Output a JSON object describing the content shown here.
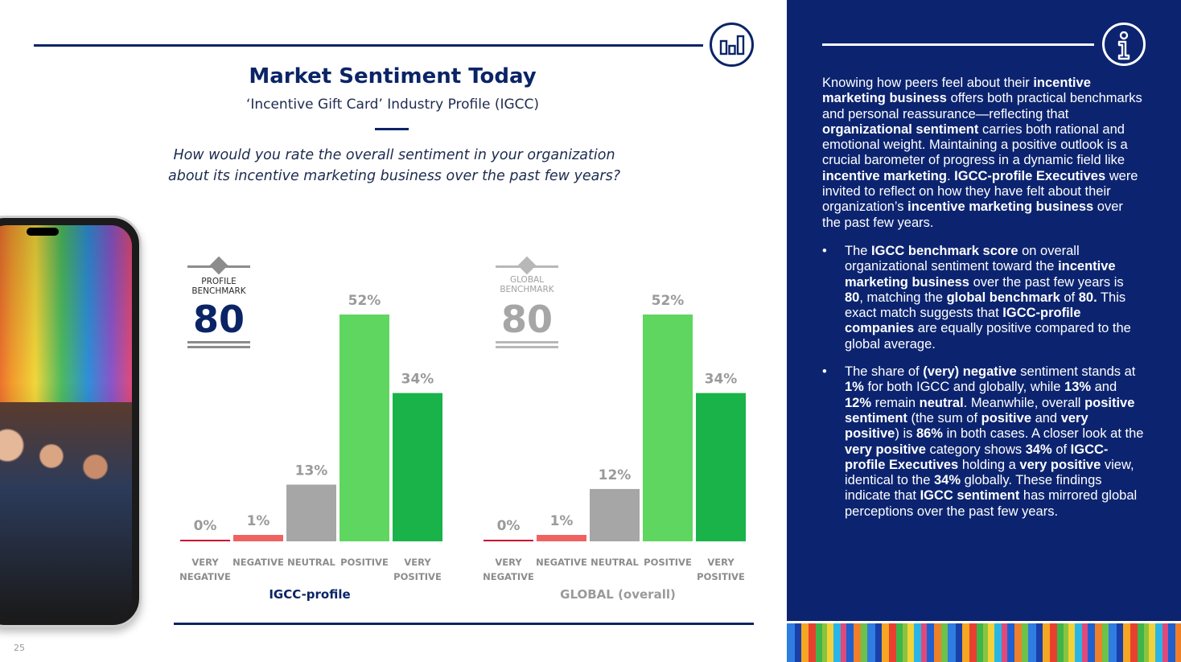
{
  "header": {
    "title": "Market Sentiment Today",
    "subtitle": "‘Incentive Gift Card’ Industry Profile (IGCC)",
    "question_line1": "How would you rate the overall sentiment in your organization",
    "question_line2": "about its incentive marketing business over the past few years?",
    "chart_icon": "bar-chart-icon"
  },
  "benchmarks": {
    "profile": {
      "label_line1": "PROFILE",
      "label_line2": "BENCHMARK",
      "value": "80"
    },
    "global": {
      "label_line1": "GLOBAL",
      "label_line2": "BENCHMARK",
      "value": "80"
    }
  },
  "groups": {
    "igcc": "IGCC-profile",
    "global": "GLOBAL (overall)"
  },
  "colors": {
    "navy": "#0b2466",
    "very_negative": "#c8102e",
    "negative": "#f06262",
    "neutral": "#a6a6a6",
    "positive": "#5fd65f",
    "very_positive": "#19b34a"
  },
  "chart_data": [
    {
      "type": "bar",
      "categories": [
        "VERY NEGATIVE",
        "NEGATIVE",
        "NEUTRAL",
        "POSITIVE",
        "VERY POSITIVE"
      ],
      "values": [
        0,
        1,
        13,
        52,
        34
      ],
      "data_labels": [
        "0%",
        "1%",
        "13%",
        "52%",
        "34%"
      ],
      "title": "IGCC-profile",
      "ylim": [
        0,
        60
      ]
    },
    {
      "type": "bar",
      "categories": [
        "VERY NEGATIVE",
        "NEGATIVE",
        "NEUTRAL",
        "POSITIVE",
        "VERY POSITIVE"
      ],
      "values": [
        0,
        1,
        12,
        52,
        34
      ],
      "data_labels": [
        "0%",
        "1%",
        "12%",
        "52%",
        "34%"
      ],
      "title": "GLOBAL (overall)",
      "ylim": [
        0,
        60
      ]
    }
  ],
  "panel": {
    "info_icon": "info-icon",
    "intro": [
      {
        "t": "Knowing how peers feel about their "
      },
      {
        "t": "incentive marketing business",
        "b": true
      },
      {
        "t": " offers both practical benchmarks and personal reassurance—reflecting that "
      },
      {
        "t": "organizational sentiment",
        "b": true
      },
      {
        "t": " carries both rational and emotional weight. Maintaining a positive outlook is a crucial barometer of progress in a dynamic field like "
      },
      {
        "t": "incentive marketing",
        "b": true
      },
      {
        "t": ". "
      },
      {
        "t": "IGCC-profile Executives",
        "b": true
      },
      {
        "t": " were invited to reflect on how they have felt about their organization’s "
      },
      {
        "t": "incentive marketing business",
        "b": true
      },
      {
        "t": " over the past few years."
      }
    ],
    "bullets": [
      [
        {
          "t": "The "
        },
        {
          "t": "IGCC benchmark score",
          "b": true
        },
        {
          "t": " on overall organizational sentiment toward the "
        },
        {
          "t": "incentive marketing business",
          "b": true
        },
        {
          "t": " over the past few years is "
        },
        {
          "t": "80",
          "b": true
        },
        {
          "t": ", matching the "
        },
        {
          "t": "global benchmark",
          "b": true
        },
        {
          "t": " of "
        },
        {
          "t": "80.",
          "b": true
        },
        {
          "t": " This exact match suggests that "
        },
        {
          "t": "IGCC-profile companies",
          "b": true
        },
        {
          "t": " are equally positive compared to the global average."
        }
      ],
      [
        {
          "t": "The share of "
        },
        {
          "t": "(very) negative",
          "b": true
        },
        {
          "t": " sentiment stands at "
        },
        {
          "t": "1%",
          "b": true
        },
        {
          "t": " for both IGCC and globally, while "
        },
        {
          "t": "13%",
          "b": true
        },
        {
          "t": " and "
        },
        {
          "t": "12%",
          "b": true
        },
        {
          "t": " remain "
        },
        {
          "t": "neutral",
          "b": true
        },
        {
          "t": ". Meanwhile, overall "
        },
        {
          "t": "positive sentiment",
          "b": true
        },
        {
          "t": " (the sum of "
        },
        {
          "t": "positive",
          "b": true
        },
        {
          "t": " and "
        },
        {
          "t": "very positive",
          "b": true
        },
        {
          "t": ") is "
        },
        {
          "t": "86%",
          "b": true
        },
        {
          "t": " in both cases. A closer look at the "
        },
        {
          "t": "very positive",
          "b": true
        },
        {
          "t": " category shows "
        },
        {
          "t": "34%",
          "b": true
        },
        {
          "t": " of "
        },
        {
          "t": "IGCC-profile Executives",
          "b": true
        },
        {
          "t": " holding a "
        },
        {
          "t": "very positive",
          "b": true
        },
        {
          "t": " view, identical to the "
        },
        {
          "t": "34%",
          "b": true
        },
        {
          "t": " globally. These findings indicate that "
        },
        {
          "t": "IGCC sentiment",
          "b": true
        },
        {
          "t": " has mirrored global perceptions over the past few years."
        }
      ]
    ]
  },
  "footer": {
    "page_number": "25"
  }
}
